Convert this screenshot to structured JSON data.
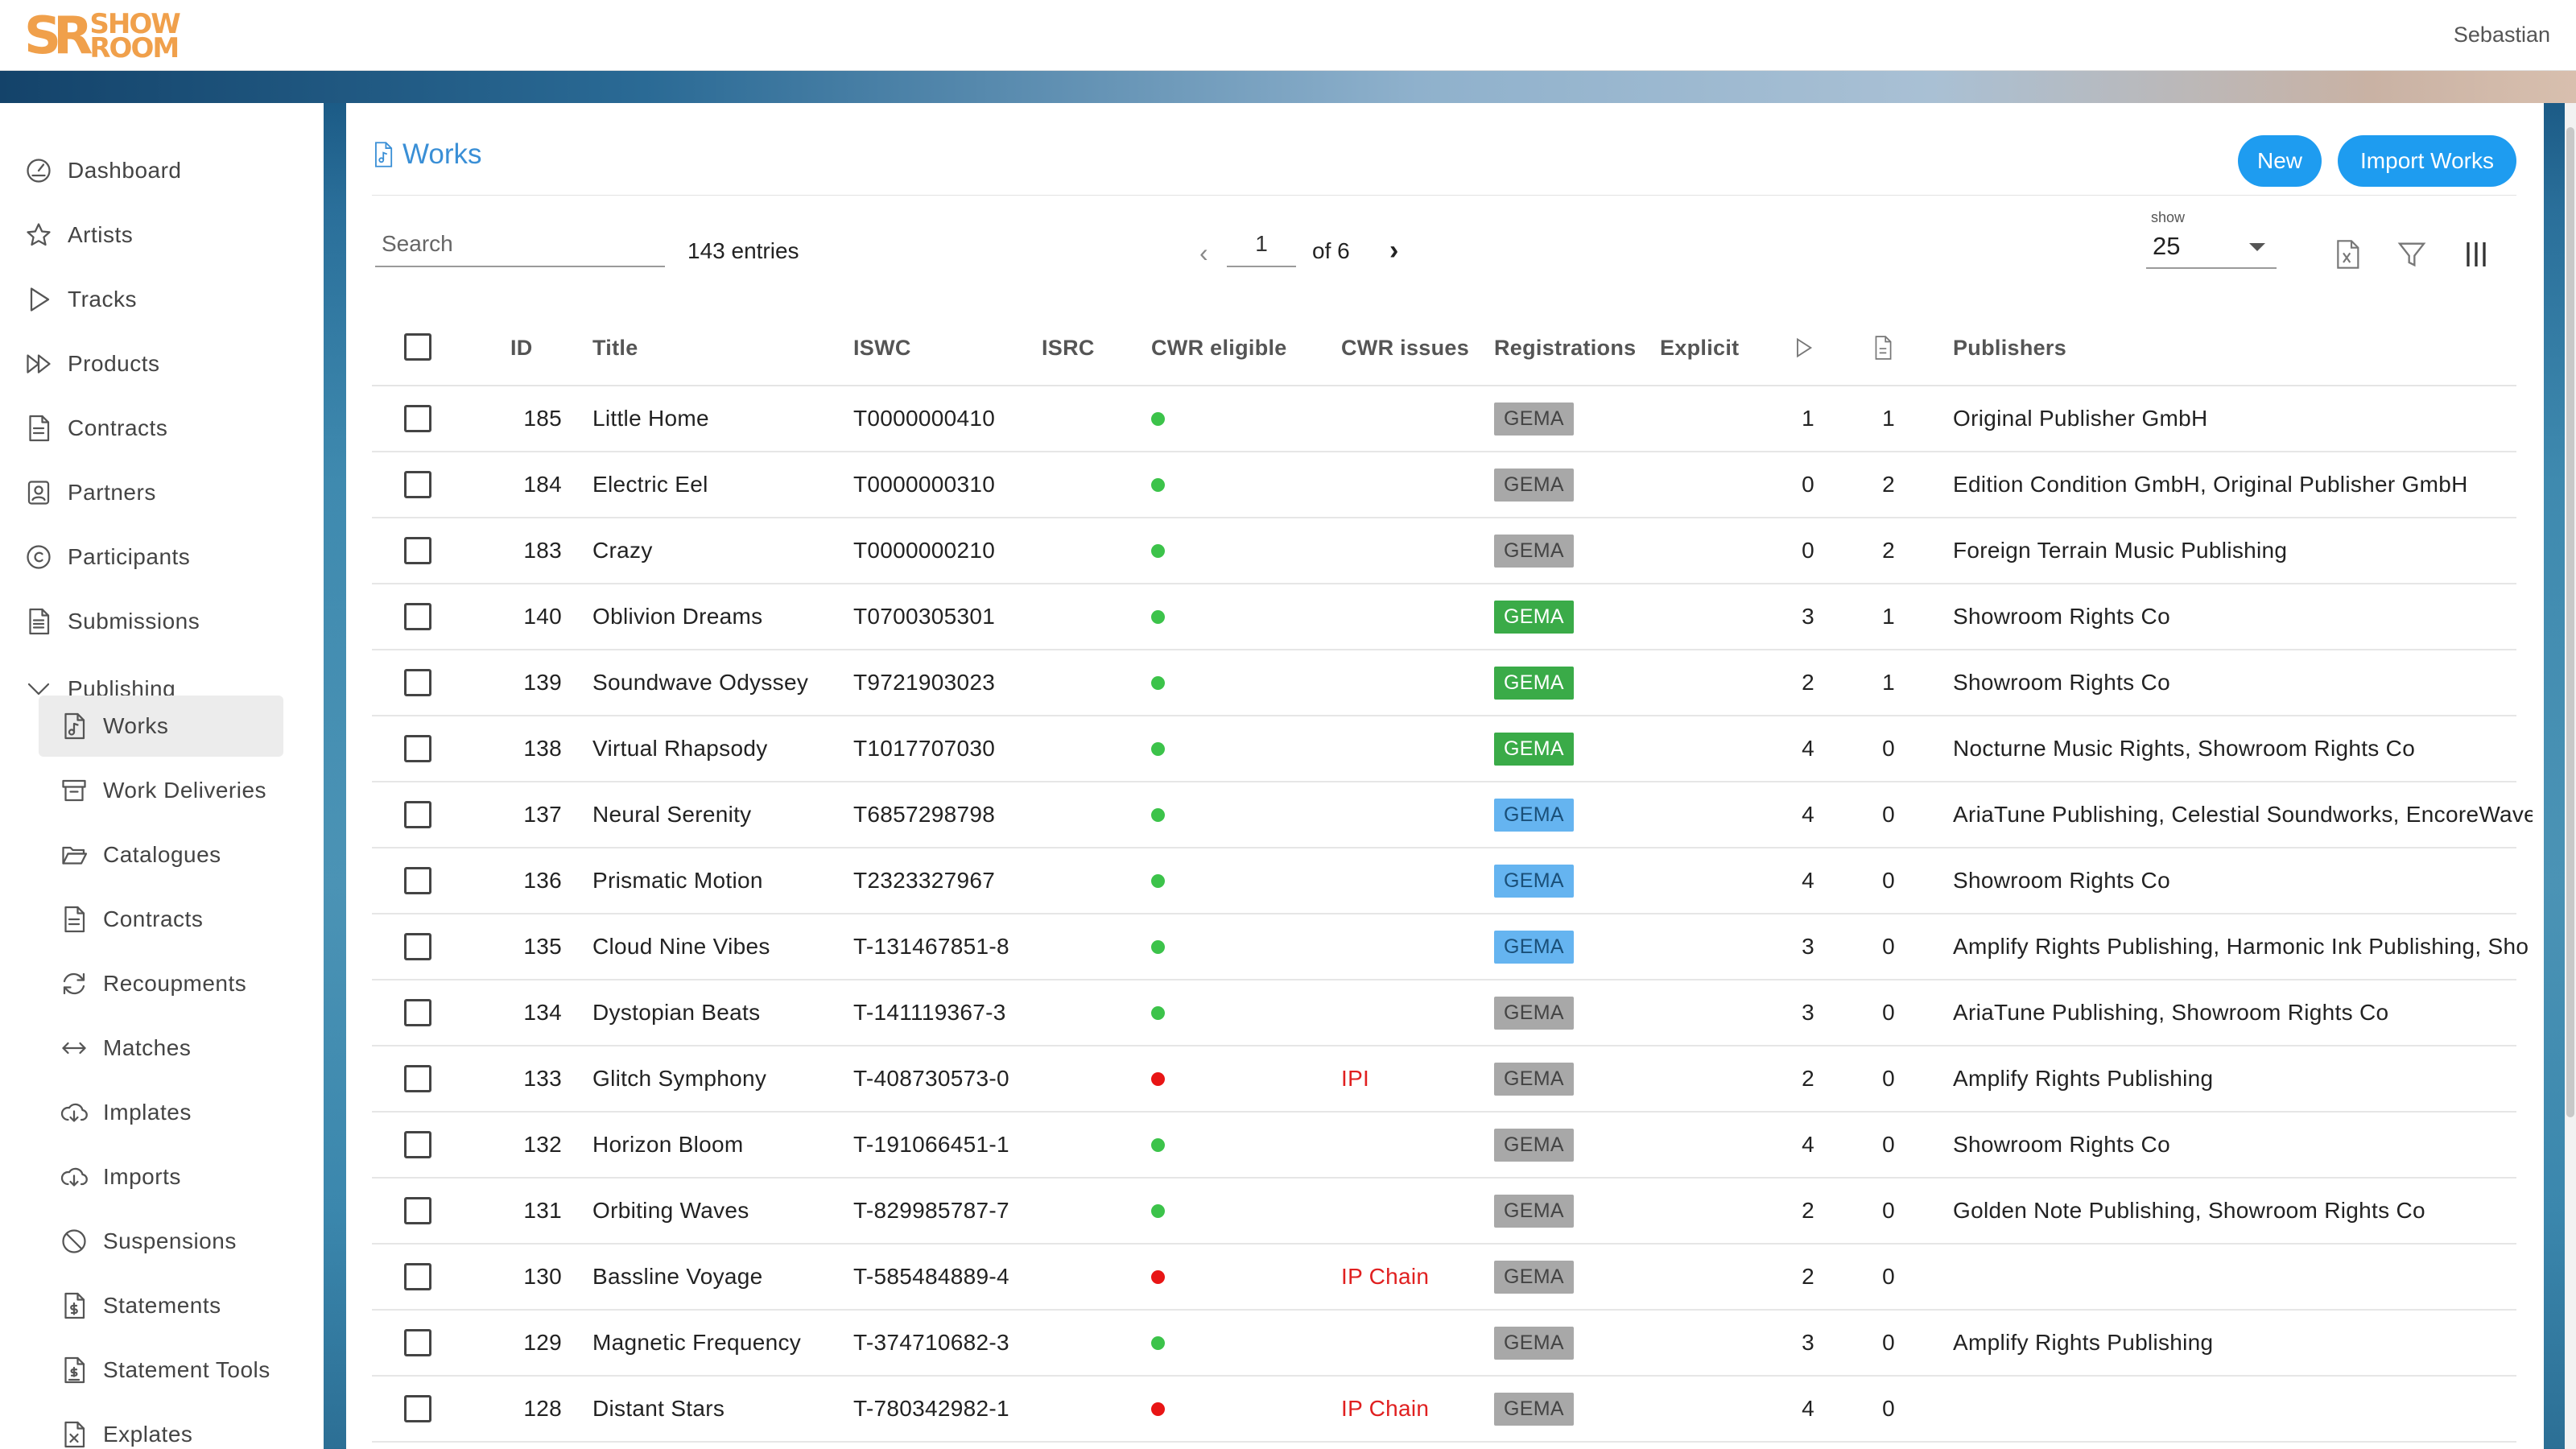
{
  "app": {
    "logo_letters": "SR",
    "logo_line1": "SHOW",
    "logo_line2": "ROOM",
    "user": "Sebastian"
  },
  "sidebar": {
    "items": [
      {
        "label": "Dashboard",
        "icon": "gauge-icon"
      },
      {
        "label": "Artists",
        "icon": "star-icon"
      },
      {
        "label": "Tracks",
        "icon": "play-icon"
      },
      {
        "label": "Products",
        "icon": "fast-forward-icon"
      },
      {
        "label": "Contracts",
        "icon": "document-icon"
      },
      {
        "label": "Partners",
        "icon": "person-badge-icon"
      },
      {
        "label": "Participants",
        "icon": "copyright-icon"
      },
      {
        "label": "Submissions",
        "icon": "document-list-icon"
      },
      {
        "label": "Publishing",
        "icon": "chevron-down-icon"
      }
    ],
    "publishing_items": [
      {
        "label": "Works",
        "icon": "music-document-icon",
        "active": true
      },
      {
        "label": "Work Deliveries",
        "icon": "archive-icon"
      },
      {
        "label": "Catalogues",
        "icon": "folder-open-icon"
      },
      {
        "label": "Contracts",
        "icon": "document-icon"
      },
      {
        "label": "Recoupments",
        "icon": "refresh-arrows-icon"
      },
      {
        "label": "Matches",
        "icon": "double-arrow-icon"
      },
      {
        "label": "Implates",
        "icon": "cloud-download-icon"
      },
      {
        "label": "Imports",
        "icon": "cloud-download-icon"
      },
      {
        "label": "Suspensions",
        "icon": "block-icon"
      },
      {
        "label": "Statements",
        "icon": "dollar-document-icon"
      },
      {
        "label": "Statement Tools",
        "icon": "dollar-document-gear-icon"
      },
      {
        "label": "Explates",
        "icon": "export-document-icon"
      }
    ]
  },
  "page": {
    "title": "Works",
    "buttons": {
      "new": "New",
      "import": "Import Works"
    },
    "search_placeholder": "Search",
    "entries": "143 entries",
    "pagination": {
      "prev": "‹",
      "current": "1",
      "of": "of 6",
      "next": "›"
    },
    "show": {
      "label": "show",
      "value": "25"
    }
  },
  "table": {
    "columns": {
      "id": "ID",
      "title": "Title",
      "iswc": "ISWC",
      "isrc": "ISRC",
      "cwr_eligible": "CWR eligible",
      "cwr_issues": "CWR issues",
      "registrations": "Registrations",
      "explicit": "Explicit",
      "publishers": "Publishers"
    },
    "rows": [
      {
        "id": "185",
        "title": "Little Home",
        "iswc": "T0000000410",
        "eligible": "green",
        "issue": "",
        "reg": "GEMA",
        "reg_status": "grey",
        "tracks": "1",
        "docs": "1",
        "publishers": "Original Publisher GmbH"
      },
      {
        "id": "184",
        "title": "Electric Eel",
        "iswc": "T0000000310",
        "eligible": "green",
        "issue": "",
        "reg": "GEMA",
        "reg_status": "grey",
        "tracks": "0",
        "docs": "2",
        "publishers": "Edition Condition GmbH, Original Publisher GmbH"
      },
      {
        "id": "183",
        "title": "Crazy",
        "iswc": "T0000000210",
        "eligible": "green",
        "issue": "",
        "reg": "GEMA",
        "reg_status": "grey",
        "tracks": "0",
        "docs": "2",
        "publishers": "Foreign Terrain Music Publishing"
      },
      {
        "id": "140",
        "title": "Oblivion Dreams",
        "iswc": "T0700305301",
        "eligible": "green",
        "issue": "",
        "reg": "GEMA",
        "reg_status": "green",
        "tracks": "3",
        "docs": "1",
        "publishers": "Showroom Rights Co"
      },
      {
        "id": "139",
        "title": "Soundwave Odyssey",
        "iswc": "T9721903023",
        "eligible": "green",
        "issue": "",
        "reg": "GEMA",
        "reg_status": "green",
        "tracks": "2",
        "docs": "1",
        "publishers": "Showroom Rights Co"
      },
      {
        "id": "138",
        "title": "Virtual Rhapsody",
        "iswc": "T1017707030",
        "eligible": "green",
        "issue": "",
        "reg": "GEMA",
        "reg_status": "green",
        "tracks": "4",
        "docs": "0",
        "publishers": "Nocturne Music Rights, Showroom Rights Co"
      },
      {
        "id": "137",
        "title": "Neural Serenity",
        "iswc": "T6857298798",
        "eligible": "green",
        "issue": "",
        "reg": "GEMA",
        "reg_status": "blue",
        "tracks": "4",
        "docs": "0",
        "publishers": "AriaTune Publishing, Celestial Soundworks, EncoreWave"
      },
      {
        "id": "136",
        "title": "Prismatic Motion",
        "iswc": "T2323327967",
        "eligible": "green",
        "issue": "",
        "reg": "GEMA",
        "reg_status": "blue",
        "tracks": "4",
        "docs": "0",
        "publishers": "Showroom Rights Co"
      },
      {
        "id": "135",
        "title": "Cloud Nine Vibes",
        "iswc": "T-131467851-8",
        "eligible": "green",
        "issue": "",
        "reg": "GEMA",
        "reg_status": "blue",
        "tracks": "3",
        "docs": "0",
        "publishers": "Amplify Rights Publishing, Harmonic Ink Publishing, Sho"
      },
      {
        "id": "134",
        "title": "Dystopian Beats",
        "iswc": "T-141119367-3",
        "eligible": "green",
        "issue": "",
        "reg": "GEMA",
        "reg_status": "grey",
        "tracks": "3",
        "docs": "0",
        "publishers": "AriaTune Publishing, Showroom Rights Co"
      },
      {
        "id": "133",
        "title": "Glitch Symphony",
        "iswc": "T-408730573-0",
        "eligible": "red",
        "issue": "IPI",
        "reg": "GEMA",
        "reg_status": "grey",
        "tracks": "2",
        "docs": "0",
        "publishers": "Amplify Rights Publishing"
      },
      {
        "id": "132",
        "title": "Horizon Bloom",
        "iswc": "T-191066451-1",
        "eligible": "green",
        "issue": "",
        "reg": "GEMA",
        "reg_status": "grey",
        "tracks": "4",
        "docs": "0",
        "publishers": "Showroom Rights Co"
      },
      {
        "id": "131",
        "title": "Orbiting Waves",
        "iswc": "T-829985787-7",
        "eligible": "green",
        "issue": "",
        "reg": "GEMA",
        "reg_status": "grey",
        "tracks": "2",
        "docs": "0",
        "publishers": "Golden Note Publishing, Showroom Rights Co"
      },
      {
        "id": "130",
        "title": "Bassline Voyage",
        "iswc": "T-585484889-4",
        "eligible": "red",
        "issue": "IP Chain",
        "reg": "GEMA",
        "reg_status": "grey",
        "tracks": "2",
        "docs": "0",
        "publishers": ""
      },
      {
        "id": "129",
        "title": "Magnetic Frequency",
        "iswc": "T-374710682-3",
        "eligible": "green",
        "issue": "",
        "reg": "GEMA",
        "reg_status": "grey",
        "tracks": "3",
        "docs": "0",
        "publishers": "Amplify Rights Publishing"
      },
      {
        "id": "128",
        "title": "Distant Stars",
        "iswc": "T-780342982-1",
        "eligible": "red",
        "issue": "IP Chain",
        "reg": "GEMA",
        "reg_status": "grey",
        "tracks": "4",
        "docs": "0",
        "publishers": ""
      }
    ]
  },
  "colors": {
    "accent": "#1e9cf0",
    "title": "#3a8fd6",
    "dot_green": "#3cc34a",
    "dot_red": "#e81515",
    "badge_grey": "#a8a8a8",
    "badge_green": "#3aab48",
    "badge_blue": "#65b4f0"
  }
}
